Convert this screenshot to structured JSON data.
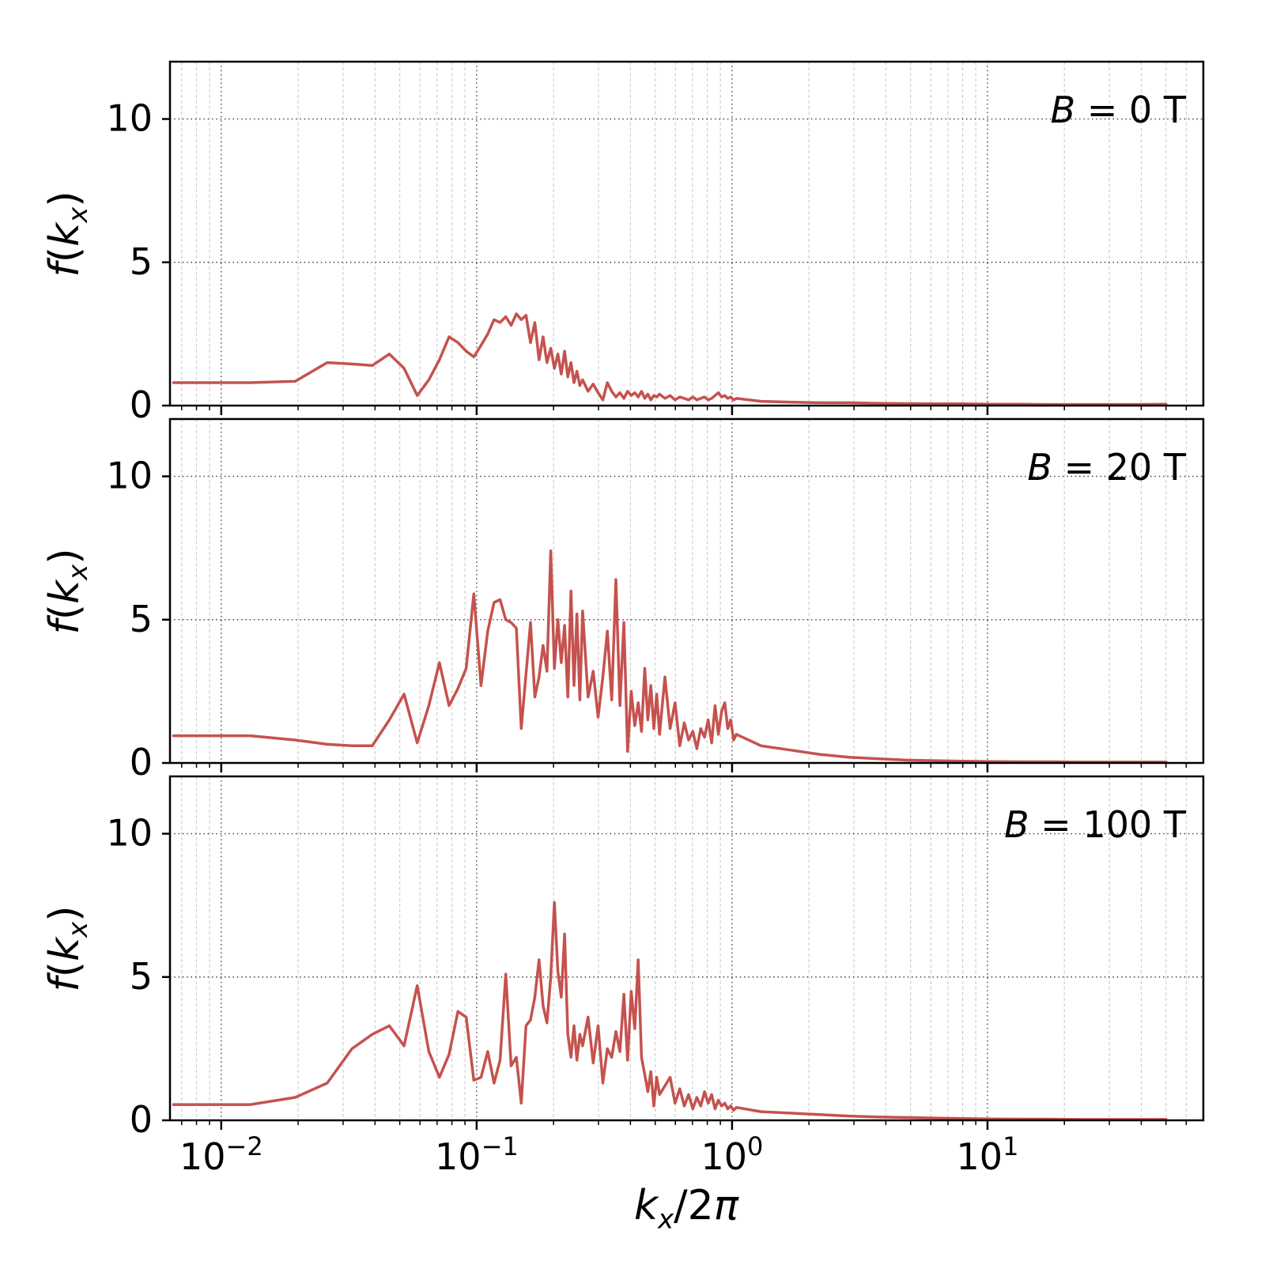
{
  "labels": {
    "panels": [
      {
        "var": "B",
        "rest": " = 0 T"
      },
      {
        "var": "B",
        "rest": " = 20 T"
      },
      {
        "var": "B",
        "rest": " = 100 T"
      }
    ],
    "ylabel": {
      "f": "f",
      "open": "(",
      "k": "k",
      "sub": "x",
      "close": ")"
    },
    "xlabel": {
      "k": "k",
      "sub": "x",
      "mid": "/2",
      "pi": "π"
    }
  },
  "chart_data": {
    "type": "line",
    "xscale": "log",
    "xlim": [
      0.0063,
      70
    ],
    "ylim": [
      0,
      12
    ],
    "yticks": [
      0,
      5,
      10
    ],
    "ygrid": [
      5,
      10
    ],
    "xtick_exponents": [
      -2,
      -1,
      0,
      1
    ],
    "grid": true,
    "legend_position": "none",
    "xlabel": "k_x/2pi",
    "ylabel": "f(k_x)",
    "line_color": "#c5524e",
    "x": [
      0.0065,
      0.013,
      0.0195,
      0.026,
      0.0325,
      0.039,
      0.0455,
      0.052,
      0.0585,
      0.065,
      0.0715,
      0.078,
      0.0845,
      0.091,
      0.0975,
      0.104,
      0.1105,
      0.117,
      0.1235,
      0.13,
      0.1365,
      0.143,
      0.1495,
      0.156,
      0.1625,
      0.169,
      0.1755,
      0.182,
      0.1885,
      0.195,
      0.2015,
      0.208,
      0.2145,
      0.221,
      0.2275,
      0.234,
      0.2405,
      0.247,
      0.2535,
      0.26,
      0.273,
      0.286,
      0.299,
      0.312,
      0.325,
      0.338,
      0.351,
      0.364,
      0.377,
      0.39,
      0.403,
      0.416,
      0.429,
      0.442,
      0.455,
      0.468,
      0.481,
      0.494,
      0.507,
      0.52,
      0.546,
      0.572,
      0.598,
      0.624,
      0.65,
      0.676,
      0.702,
      0.728,
      0.754,
      0.78,
      0.806,
      0.832,
      0.858,
      0.884,
      0.91,
      0.936,
      0.962,
      0.988,
      1.014,
      1.04,
      1.3,
      1.69,
      2.2,
      2.86,
      3.7,
      4.8,
      6.2,
      8,
      10.4,
      13.5,
      17.5,
      22.7,
      29.5,
      38,
      50
    ],
    "panels": [
      {
        "name": "B = 0 T",
        "y": [
          0.8,
          0.8,
          0.85,
          1.5,
          1.45,
          1.4,
          1.8,
          1.3,
          0.35,
          0.9,
          1.6,
          2.4,
          2.2,
          1.9,
          1.7,
          2.1,
          2.5,
          3.0,
          2.9,
          3.1,
          2.8,
          3.2,
          3.0,
          3.15,
          2.2,
          2.9,
          1.6,
          2.4,
          1.5,
          2.0,
          1.3,
          1.8,
          1.1,
          1.9,
          1.0,
          1.5,
          0.8,
          1.2,
          0.7,
          0.9,
          0.5,
          0.75,
          0.45,
          0.2,
          0.8,
          0.5,
          0.3,
          0.45,
          0.25,
          0.5,
          0.35,
          0.45,
          0.3,
          0.5,
          0.25,
          0.4,
          0.2,
          0.35,
          0.3,
          0.4,
          0.25,
          0.35,
          0.2,
          0.3,
          0.25,
          0.2,
          0.3,
          0.2,
          0.25,
          0.3,
          0.2,
          0.25,
          0.35,
          0.45,
          0.3,
          0.35,
          0.25,
          0.3,
          0.2,
          0.25,
          0.15,
          0.12,
          0.1,
          0.1,
          0.08,
          0.07,
          0.06,
          0.06,
          0.05,
          0.05,
          0.04,
          0.04,
          0.04,
          0.04,
          0.05
        ]
      },
      {
        "name": "B = 20 T",
        "y": [
          0.95,
          0.95,
          0.8,
          0.65,
          0.6,
          0.6,
          1.5,
          2.4,
          0.7,
          2.0,
          3.5,
          2.0,
          2.6,
          3.3,
          5.9,
          2.7,
          4.6,
          5.6,
          5.7,
          5.0,
          4.9,
          4.7,
          1.2,
          3.1,
          4.9,
          2.3,
          3.0,
          4.1,
          3.2,
          7.4,
          3.3,
          5.0,
          3.5,
          4.8,
          2.3,
          6.0,
          2.7,
          5.2,
          2.2,
          5.3,
          2.3,
          3.2,
          1.6,
          3.0,
          4.6,
          2.2,
          6.4,
          2.0,
          4.9,
          0.4,
          2.5,
          1.3,
          2.1,
          1.1,
          3.3,
          1.5,
          2.7,
          1.2,
          2.4,
          1.0,
          3.0,
          1.2,
          2.1,
          0.6,
          1.4,
          0.8,
          1.1,
          0.5,
          1.2,
          0.9,
          1.5,
          0.7,
          2.0,
          1.0,
          1.8,
          2.1,
          1.2,
          1.5,
          0.8,
          1.0,
          0.6,
          0.45,
          0.3,
          0.2,
          0.15,
          0.1,
          0.08,
          0.06,
          0.05,
          0.04,
          0.04,
          0.03,
          0.03,
          0.03,
          0.03
        ]
      },
      {
        "name": "B = 100 T",
        "y": [
          0.55,
          0.55,
          0.8,
          1.3,
          2.5,
          3.0,
          3.3,
          2.6,
          4.7,
          2.4,
          1.5,
          2.3,
          3.8,
          3.6,
          1.4,
          1.5,
          2.4,
          1.3,
          2.1,
          5.1,
          1.9,
          2.2,
          0.6,
          3.3,
          3.5,
          4.3,
          5.6,
          4.0,
          3.4,
          5.0,
          7.6,
          5.2,
          4.3,
          6.5,
          3.0,
          2.2,
          3.3,
          2.1,
          3.0,
          2.6,
          3.6,
          2.0,
          3.3,
          1.3,
          2.5,
          2.2,
          3.1,
          2.4,
          4.4,
          2.1,
          4.5,
          3.2,
          5.6,
          2.2,
          1.6,
          1.0,
          1.7,
          0.5,
          1.5,
          0.9,
          1.2,
          1.5,
          0.6,
          1.1,
          0.5,
          0.9,
          0.4,
          0.8,
          0.5,
          1.0,
          0.6,
          0.9,
          0.4,
          0.7,
          0.5,
          0.6,
          0.4,
          0.5,
          0.35,
          0.45,
          0.3,
          0.25,
          0.2,
          0.15,
          0.12,
          0.1,
          0.08,
          0.06,
          0.05,
          0.04,
          0.04,
          0.03,
          0.03,
          0.03,
          0.03
        ]
      }
    ]
  }
}
